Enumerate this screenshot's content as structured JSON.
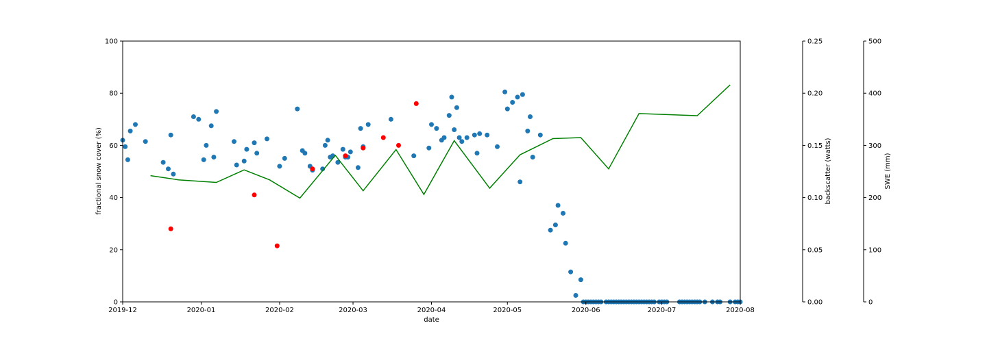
{
  "chart_data": {
    "type": "scatter",
    "xlabel": "date",
    "ylabel": "fractional snow cover (%)",
    "ylabel_backscatter": "backscatter (watts)",
    "ylabel_swe": "SWE (mm)",
    "xlim": [
      "2019-12-01",
      "2020-08-01"
    ],
    "ylim": [
      0,
      100
    ],
    "backscatter_lim": [
      0,
      0.25
    ],
    "swe_lim": [
      0,
      500
    ],
    "x_ticks": [
      "2019-12",
      "2020-01",
      "2020-02",
      "2020-03",
      "2020-04",
      "2020-05",
      "2020-06",
      "2020-07",
      "2020-08"
    ],
    "y_ticks": [
      "0",
      "20",
      "40",
      "60",
      "80",
      "100"
    ],
    "backscatter_ticks": [
      "0.00",
      "0.05",
      "0.10",
      "0.15",
      "0.20",
      "0.25"
    ],
    "swe_ticks": [
      "0",
      "100",
      "200",
      "300",
      "400",
      "500"
    ],
    "grid": false,
    "series": [
      {
        "color": "#1f77b4",
        "points": [
          [
            "2019-12-01",
            62
          ],
          [
            "2019-12-02",
            59.5
          ],
          [
            "2019-12-03",
            54.5
          ],
          [
            "2019-12-04",
            65.5
          ],
          [
            "2019-12-06",
            68
          ],
          [
            "2019-12-10",
            61.5
          ],
          [
            "2019-12-17",
            53.5
          ],
          [
            "2019-12-19",
            51
          ],
          [
            "2019-12-20",
            64
          ],
          [
            "2019-12-21",
            49
          ],
          [
            "2019-12-29",
            71
          ],
          [
            "2019-12-31",
            70
          ],
          [
            "2020-01-02",
            54.5
          ],
          [
            "2020-01-03",
            60
          ],
          [
            "2020-01-05",
            67.5
          ],
          [
            "2020-01-06",
            55.5
          ],
          [
            "2020-01-07",
            73
          ],
          [
            "2020-01-14",
            61.5
          ],
          [
            "2020-01-15",
            52.5
          ],
          [
            "2020-01-18",
            54
          ],
          [
            "2020-01-19",
            58.5
          ],
          [
            "2020-01-22",
            61
          ],
          [
            "2020-01-23",
            57
          ],
          [
            "2020-01-27",
            62.5
          ],
          [
            "2020-02-01",
            52
          ],
          [
            "2020-02-03",
            55
          ],
          [
            "2020-02-08",
            74
          ],
          [
            "2020-02-10",
            58
          ],
          [
            "2020-02-11",
            57
          ],
          [
            "2020-02-13",
            52
          ],
          [
            "2020-02-14",
            50.5
          ],
          [
            "2020-02-18",
            51
          ],
          [
            "2020-02-19",
            60
          ],
          [
            "2020-02-20",
            62
          ],
          [
            "2020-02-21",
            55.5
          ],
          [
            "2020-02-22",
            56
          ],
          [
            "2020-02-24",
            53.5
          ],
          [
            "2020-02-26",
            58.5
          ],
          [
            "2020-02-27",
            55.5
          ],
          [
            "2020-02-28",
            55.5
          ],
          [
            "2020-02-29",
            57.5
          ],
          [
            "2020-03-03",
            51.5
          ],
          [
            "2020-03-04",
            66.5
          ],
          [
            "2020-03-05",
            59.5
          ],
          [
            "2020-03-07",
            68
          ],
          [
            "2020-03-16",
            70
          ],
          [
            "2020-03-25",
            56
          ],
          [
            "2020-03-31",
            59
          ],
          [
            "2020-04-01",
            68
          ],
          [
            "2020-04-03",
            66.5
          ],
          [
            "2020-04-05",
            62
          ],
          [
            "2020-04-06",
            63
          ],
          [
            "2020-04-08",
            71.5
          ],
          [
            "2020-04-09",
            78.5
          ],
          [
            "2020-04-10",
            66
          ],
          [
            "2020-04-11",
            74.5
          ],
          [
            "2020-04-12",
            63
          ],
          [
            "2020-04-13",
            61.5
          ],
          [
            "2020-04-15",
            63
          ],
          [
            "2020-04-18",
            64
          ],
          [
            "2020-04-19",
            57
          ],
          [
            "2020-04-20",
            64.5
          ],
          [
            "2020-04-23",
            64
          ],
          [
            "2020-04-27",
            59.5
          ],
          [
            "2020-04-30",
            80.5
          ],
          [
            "2020-05-01",
            74
          ],
          [
            "2020-05-03",
            76.5
          ],
          [
            "2020-05-05",
            78.5
          ],
          [
            "2020-05-06",
            46
          ],
          [
            "2020-05-07",
            79.5
          ],
          [
            "2020-05-09",
            65.5
          ],
          [
            "2020-05-10",
            71
          ],
          [
            "2020-05-11",
            55.5
          ],
          [
            "2020-05-14",
            64
          ],
          [
            "2020-05-18",
            27.5
          ],
          [
            "2020-05-20",
            29.5
          ],
          [
            "2020-05-21",
            37
          ],
          [
            "2020-05-23",
            34
          ],
          [
            "2020-05-24",
            22.5
          ],
          [
            "2020-05-26",
            11.5
          ],
          [
            "2020-05-28",
            2.5
          ],
          [
            "2020-05-30",
            8.5
          ],
          [
            "2020-05-31",
            0
          ],
          [
            "2020-06-01",
            0
          ],
          [
            "2020-06-02",
            0
          ],
          [
            "2020-06-03",
            0
          ],
          [
            "2020-06-04",
            0
          ],
          [
            "2020-06-05",
            0
          ],
          [
            "2020-06-06",
            0
          ],
          [
            "2020-06-07",
            0
          ],
          [
            "2020-06-09",
            0
          ],
          [
            "2020-06-10",
            0
          ],
          [
            "2020-06-11",
            0
          ],
          [
            "2020-06-12",
            0
          ],
          [
            "2020-06-13",
            0
          ],
          [
            "2020-06-14",
            0
          ],
          [
            "2020-06-15",
            0
          ],
          [
            "2020-06-16",
            0
          ],
          [
            "2020-06-17",
            0
          ],
          [
            "2020-06-18",
            0
          ],
          [
            "2020-06-19",
            0
          ],
          [
            "2020-06-20",
            0
          ],
          [
            "2020-06-21",
            0
          ],
          [
            "2020-06-22",
            0
          ],
          [
            "2020-06-23",
            0
          ],
          [
            "2020-06-24",
            0
          ],
          [
            "2020-06-25",
            0
          ],
          [
            "2020-06-26",
            0
          ],
          [
            "2020-06-27",
            0
          ],
          [
            "2020-06-28",
            0
          ],
          [
            "2020-06-30",
            0
          ],
          [
            "2020-07-01",
            0
          ],
          [
            "2020-07-02",
            0
          ],
          [
            "2020-07-03",
            0
          ],
          [
            "2020-07-08",
            0
          ],
          [
            "2020-07-09",
            0
          ],
          [
            "2020-07-10",
            0
          ],
          [
            "2020-07-11",
            0
          ],
          [
            "2020-07-12",
            0
          ],
          [
            "2020-07-13",
            0
          ],
          [
            "2020-07-14",
            0
          ],
          [
            "2020-07-15",
            0
          ],
          [
            "2020-07-16",
            0
          ],
          [
            "2020-07-18",
            0
          ],
          [
            "2020-07-21",
            0
          ],
          [
            "2020-07-23",
            0
          ],
          [
            "2020-07-24",
            0
          ],
          [
            "2020-07-28",
            0
          ],
          [
            "2020-07-30",
            0
          ],
          [
            "2020-07-31",
            0
          ],
          [
            "2020-08-01",
            0
          ]
        ]
      },
      {
        "color": "#ff0000",
        "points": [
          [
            "2019-12-20",
            28
          ],
          [
            "2020-01-22",
            41
          ],
          [
            "2020-01-31",
            21.5
          ],
          [
            "2020-02-14",
            51
          ],
          [
            "2020-02-27",
            56
          ],
          [
            "2020-03-05",
            59
          ],
          [
            "2020-03-13",
            63
          ],
          [
            "2020-03-19",
            60
          ],
          [
            "2020-03-26",
            76
          ]
        ]
      },
      {
        "type": "line",
        "axis": "swe",
        "color": "#008000",
        "points": [
          [
            "2019-12-12",
            242
          ],
          [
            "2019-12-23",
            234
          ],
          [
            "2020-01-07",
            229
          ],
          [
            "2020-01-18",
            253
          ],
          [
            "2020-01-28",
            234
          ],
          [
            "2020-02-09",
            199
          ],
          [
            "2020-02-23",
            281
          ],
          [
            "2020-03-05",
            213
          ],
          [
            "2020-03-18",
            292
          ],
          [
            "2020-03-29",
            206
          ],
          [
            "2020-04-10",
            309
          ],
          [
            "2020-04-24",
            218
          ],
          [
            "2020-05-06",
            282
          ],
          [
            "2020-05-19",
            313
          ],
          [
            "2020-05-30",
            315
          ],
          [
            "2020-06-10",
            255
          ],
          [
            "2020-06-22",
            361
          ],
          [
            "2020-07-15",
            357
          ],
          [
            "2020-07-28",
            416
          ]
        ]
      }
    ]
  }
}
